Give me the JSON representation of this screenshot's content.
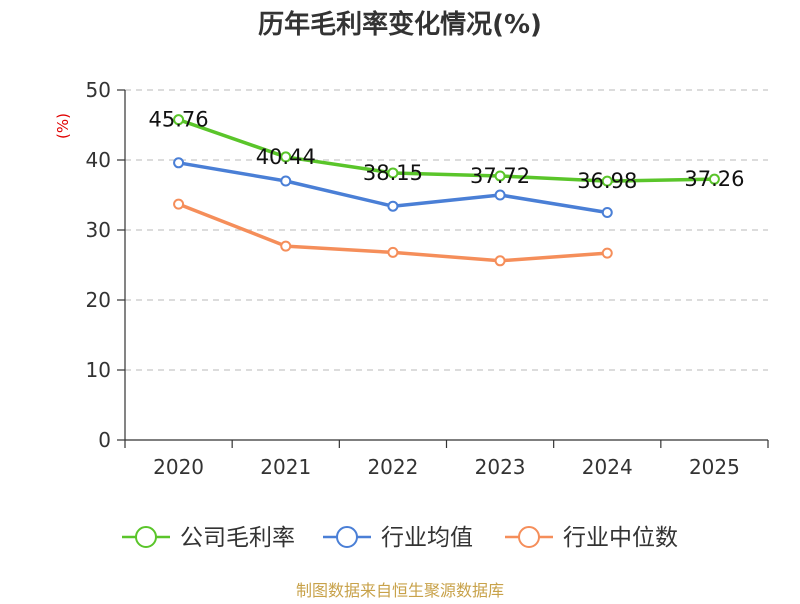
{
  "chart_data": {
    "type": "line",
    "title": "历年毛利率变化情况(%)",
    "unit": "(%)",
    "categories": [
      "2020",
      "2021",
      "2022",
      "2023",
      "2024",
      "2025"
    ],
    "ylim": [
      0,
      50
    ],
    "yticks": [
      0,
      10,
      20,
      30,
      40,
      50
    ],
    "grid": true,
    "legend_position": "bottom",
    "series": [
      {
        "name": "公司毛利率",
        "color": "#5ac52a",
        "values": [
          45.76,
          40.44,
          38.15,
          37.72,
          36.98,
          37.26
        ],
        "labels": [
          "45.76",
          "40.44",
          "38.15",
          "37.72",
          "36.98",
          "37.26"
        ]
      },
      {
        "name": "行业均值",
        "color": "#4a7fd6",
        "values": [
          39.6,
          37.0,
          33.4,
          35.0,
          32.5,
          null
        ],
        "labels": []
      },
      {
        "name": "行业中位数",
        "color": "#f58e5a",
        "values": [
          33.7,
          27.7,
          26.8,
          25.6,
          26.7,
          null
        ],
        "labels": []
      }
    ],
    "source": "制图数据来自恒生聚源数据库"
  }
}
